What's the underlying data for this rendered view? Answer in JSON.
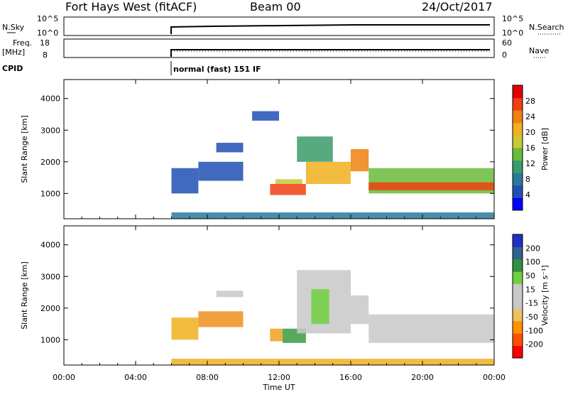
{
  "header": {
    "station": "Fort Hays West (fitACF)",
    "beam": "Beam 00",
    "date": "24/Oct/2017"
  },
  "param_panels": {
    "nsky_label": "N.Sky",
    "nsky_ticks": [
      "10^5",
      "10^0"
    ],
    "nsearch_label": "N.Search",
    "nsearch_ticks": [
      "10^5",
      "10^0"
    ],
    "freq_label": "Freq.",
    "freq_unit": "[MHz]",
    "freq_ticks": [
      "18",
      "8"
    ],
    "nave_label": "Nave",
    "nave_ticks": [
      "60",
      "0"
    ],
    "cpid_label": "CPID",
    "cpid_value": "normal (fast) 151 IF"
  },
  "colors": {
    "power_scale": [
      "#0000ff",
      "#1f4fb4",
      "#2a7a9a",
      "#3a9a6a",
      "#6abb3a",
      "#c8c83a",
      "#f0b020",
      "#f08010",
      "#f04010",
      "#e00000"
    ],
    "velocity_scale": [
      "#ff0000",
      "#ff5000",
      "#ff9000",
      "#f0c060",
      "#c8c8c8",
      "#c8c8c8",
      "#70d040",
      "#309040",
      "#306090",
      "#2030c0"
    ]
  },
  "chart_data": [
    {
      "type": "heatmap",
      "name": "power",
      "ylabel": "Slant Range [km]",
      "yticks": [
        1000,
        2000,
        3000,
        4000
      ],
      "ylim": [
        200,
        4600
      ],
      "xlim": [
        0,
        24
      ],
      "colorbar_label": "Power [dB]",
      "colorbar_ticks": [
        4,
        8,
        12,
        16,
        20,
        24,
        28
      ],
      "colorbar_range": [
        0,
        32
      ],
      "bands": [
        {
          "t": [
            6.0,
            7.5
          ],
          "r": [
            1000,
            1800
          ],
          "v": 6
        },
        {
          "t": [
            7.5,
            10.0
          ],
          "r": [
            1400,
            2000
          ],
          "v": 5
        },
        {
          "t": [
            8.5,
            10.0
          ],
          "r": [
            2300,
            2600
          ],
          "v": 5
        },
        {
          "t": [
            10.5,
            12.0
          ],
          "r": [
            3300,
            3600
          ],
          "v": 5
        },
        {
          "t": [
            11.5,
            13.5
          ],
          "r": [
            950,
            1300
          ],
          "v": 26
        },
        {
          "t": [
            11.8,
            13.3
          ],
          "r": [
            1300,
            1450
          ],
          "v": 16
        },
        {
          "t": [
            13.0,
            15.0
          ],
          "r": [
            2000,
            2800
          ],
          "v": 12
        },
        {
          "t": [
            13.5,
            16.0
          ],
          "r": [
            1300,
            2000
          ],
          "v": 22
        },
        {
          "t": [
            16.0,
            17.0
          ],
          "r": [
            1700,
            2400
          ],
          "v": 24
        },
        {
          "t": [
            17.0,
            24.0
          ],
          "r": [
            1000,
            1800
          ],
          "v": 13
        },
        {
          "t": [
            17.0,
            24.0
          ],
          "r": [
            1100,
            1350
          ],
          "v": 26
        },
        {
          "t": [
            6.0,
            24.0
          ],
          "r": [
            200,
            400
          ],
          "v": 8
        }
      ]
    },
    {
      "type": "heatmap",
      "name": "velocity",
      "ylabel": "Slant Range [km]",
      "yticks": [
        1000,
        2000,
        3000,
        4000
      ],
      "ylim": [
        200,
        4600
      ],
      "xlim": [
        0,
        24
      ],
      "xlabel": "Time UT",
      "xtick_labels": [
        "00:00",
        "04:00",
        "08:00",
        "12:00",
        "16:00",
        "20:00",
        "00:00"
      ],
      "colorbar_label": "Velocity [m s⁻¹]",
      "colorbar_ticks": [
        "-200",
        "-100",
        "-50",
        "-15",
        "15",
        "50",
        "100",
        "200"
      ],
      "bands": [
        {
          "t": [
            6.0,
            7.5
          ],
          "r": [
            1000,
            1700
          ],
          "v": "#f0b020"
        },
        {
          "t": [
            7.5,
            10.0
          ],
          "r": [
            1400,
            1900
          ],
          "v": "#f09020"
        },
        {
          "t": [
            8.5,
            10.0
          ],
          "r": [
            2350,
            2550
          ],
          "v": "#c8c8c8"
        },
        {
          "t": [
            11.5,
            12.2
          ],
          "r": [
            950,
            1350
          ],
          "v": "#f0a020"
        },
        {
          "t": [
            12.2,
            13.5
          ],
          "r": [
            900,
            1350
          ],
          "v": "#3a9a40"
        },
        {
          "t": [
            13.0,
            16.0
          ],
          "r": [
            1200,
            3200
          ],
          "v": "#c8c8c8"
        },
        {
          "t": [
            13.8,
            14.8
          ],
          "r": [
            1500,
            2600
          ],
          "v": "#70d040"
        },
        {
          "t": [
            16.0,
            17.0
          ],
          "r": [
            1500,
            2400
          ],
          "v": "#c8c8c8"
        },
        {
          "t": [
            17.0,
            24.0
          ],
          "r": [
            900,
            1800
          ],
          "v": "#c8c8c8"
        },
        {
          "t": [
            6.0,
            24.0
          ],
          "r": [
            200,
            400
          ],
          "v": "#f0b020"
        }
      ]
    }
  ]
}
